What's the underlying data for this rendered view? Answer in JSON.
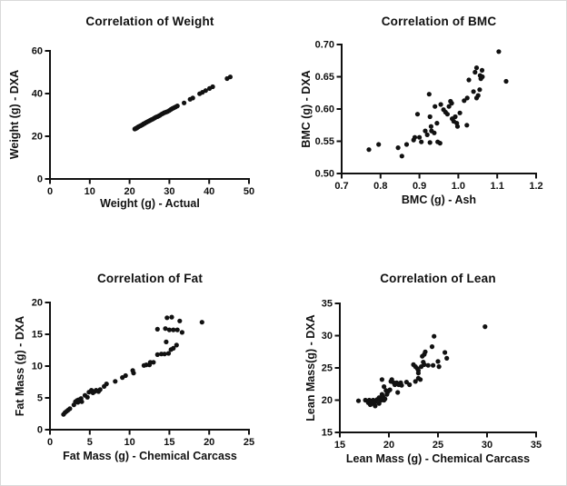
{
  "figure": {
    "background": "#ffffff",
    "axis_color": "#111111",
    "marker_color": "#111111",
    "marker_radius": 2.6
  },
  "chart_data": [
    {
      "id": "weight",
      "type": "scatter",
      "title": "Correlation of Weight",
      "xlabel": "Weight (g) - Actual",
      "ylabel": "Weight (g) - DXA",
      "xlim": [
        0,
        50
      ],
      "ylim": [
        0,
        60
      ],
      "grid": false,
      "xtick_values": [
        0,
        10,
        20,
        30,
        40,
        50
      ],
      "xtick_labels": [
        "0",
        "10",
        "20",
        "30",
        "40",
        "50"
      ],
      "ytick_values": [
        0,
        20,
        40,
        60
      ],
      "ytick_labels": [
        "0",
        "20",
        "40",
        "60"
      ],
      "points": [
        [
          21.3,
          23.4
        ],
        [
          21.5,
          23.6
        ],
        [
          21.7,
          23.8
        ],
        [
          21.9,
          24.0
        ],
        [
          22.1,
          24.3
        ],
        [
          22.3,
          24.5
        ],
        [
          22.6,
          24.8
        ],
        [
          22.8,
          25.0
        ],
        [
          23.0,
          25.2
        ],
        [
          23.3,
          25.5
        ],
        [
          23.5,
          25.8
        ],
        [
          23.8,
          26.0
        ],
        [
          24.0,
          26.3
        ],
        [
          24.3,
          26.6
        ],
        [
          24.6,
          26.9
        ],
        [
          24.9,
          27.2
        ],
        [
          25.2,
          27.5
        ],
        [
          25.5,
          27.8
        ],
        [
          25.8,
          28.0
        ],
        [
          26.1,
          28.4
        ],
        [
          26.4,
          28.7
        ],
        [
          26.7,
          29.0
        ],
        [
          27.0,
          29.2
        ],
        [
          27.3,
          29.5
        ],
        [
          27.6,
          29.8
        ],
        [
          28.0,
          30.3
        ],
        [
          28.3,
          30.6
        ],
        [
          28.7,
          31.0
        ],
        [
          29.0,
          31.2
        ],
        [
          29.3,
          31.4
        ],
        [
          29.6,
          31.6
        ],
        [
          30.0,
          32.1
        ],
        [
          30.4,
          32.6
        ],
        [
          30.8,
          33.0
        ],
        [
          31.2,
          33.4
        ],
        [
          31.6,
          33.8
        ],
        [
          32.0,
          34.2
        ],
        [
          33.7,
          35.6
        ],
        [
          35.2,
          37.3
        ],
        [
          35.9,
          37.9
        ],
        [
          37.6,
          39.9
        ],
        [
          38.3,
          40.6
        ],
        [
          39.1,
          41.4
        ],
        [
          40.1,
          42.4
        ],
        [
          40.9,
          43.2
        ],
        [
          44.5,
          47.0
        ],
        [
          45.3,
          47.8
        ]
      ]
    },
    {
      "id": "bmc",
      "type": "scatter",
      "title": "Correlation of BMC",
      "xlabel": "BMC (g) - Ash",
      "ylabel": "BMC (g) - DXA",
      "xlim": [
        0.7,
        1.2
      ],
      "ylim": [
        0.5,
        0.7
      ],
      "grid": false,
      "xtick_values": [
        0.7,
        0.8,
        0.9,
        1.0,
        1.1,
        1.2
      ],
      "xtick_labels": [
        "0.7",
        "0.8",
        "0.9",
        "1.0",
        "1.1",
        "1.2"
      ],
      "ytick_values": [
        0.5,
        0.55,
        0.6,
        0.65,
        0.7
      ],
      "ytick_labels": [
        "0.50",
        "0.55",
        "0.60",
        "0.65",
        "0.70"
      ],
      "points": [
        [
          0.77,
          0.537
        ],
        [
          0.795,
          0.545
        ],
        [
          0.845,
          0.54
        ],
        [
          0.855,
          0.527
        ],
        [
          0.867,
          0.545
        ],
        [
          0.885,
          0.552
        ],
        [
          0.888,
          0.556
        ],
        [
          0.895,
          0.592
        ],
        [
          0.9,
          0.556
        ],
        [
          0.905,
          0.549
        ],
        [
          0.915,
          0.566
        ],
        [
          0.92,
          0.56
        ],
        [
          0.925,
          0.623
        ],
        [
          0.927,
          0.588
        ],
        [
          0.93,
          0.573
        ],
        [
          0.931,
          0.566
        ],
        [
          0.927,
          0.548
        ],
        [
          0.938,
          0.563
        ],
        [
          0.94,
          0.604
        ],
        [
          0.945,
          0.578
        ],
        [
          0.947,
          0.549
        ],
        [
          0.953,
          0.547
        ],
        [
          0.955,
          0.607
        ],
        [
          0.962,
          0.599
        ],
        [
          0.967,
          0.595
        ],
        [
          0.972,
          0.592
        ],
        [
          0.976,
          0.604
        ],
        [
          0.98,
          0.612
        ],
        [
          0.983,
          0.609
        ],
        [
          0.984,
          0.585
        ],
        [
          0.988,
          0.581
        ],
        [
          0.992,
          0.588
        ],
        [
          0.996,
          0.578
        ],
        [
          0.998,
          0.573
        ],
        [
          1.004,
          0.594
        ],
        [
          1.015,
          0.613
        ],
        [
          1.022,
          0.575
        ],
        [
          1.023,
          0.617
        ],
        [
          1.027,
          0.645
        ],
        [
          1.039,
          0.627
        ],
        [
          1.043,
          0.657
        ],
        [
          1.047,
          0.664
        ],
        [
          1.047,
          0.617
        ],
        [
          1.051,
          0.621
        ],
        [
          1.055,
          0.63
        ],
        [
          1.056,
          0.652
        ],
        [
          1.058,
          0.647
        ],
        [
          1.061,
          0.66
        ],
        [
          1.062,
          0.65
        ],
        [
          1.104,
          0.689
        ],
        [
          1.123,
          0.643
        ]
      ]
    },
    {
      "id": "fat",
      "type": "scatter",
      "title": "Correlation of Fat",
      "xlabel": "Fat Mass (g) - Chemical Carcass",
      "ylabel": "Fat Mass (g) - DXA",
      "xlim": [
        0,
        25
      ],
      "ylim": [
        0,
        20
      ],
      "grid": false,
      "xtick_values": [
        0,
        5,
        10,
        15,
        20,
        25
      ],
      "xtick_labels": [
        "0",
        "5",
        "10",
        "15",
        "20",
        "25"
      ],
      "ytick_values": [
        0,
        5,
        10,
        15,
        20
      ],
      "ytick_labels": [
        "0",
        "5",
        "10",
        "15",
        "20"
      ],
      "points": [
        [
          1.7,
          2.4
        ],
        [
          1.9,
          2.7
        ],
        [
          2.1,
          2.9
        ],
        [
          2.3,
          3.1
        ],
        [
          2.5,
          3.3
        ],
        [
          3.0,
          3.9
        ],
        [
          3.2,
          4.4
        ],
        [
          3.4,
          4.6
        ],
        [
          3.5,
          4.3
        ],
        [
          3.6,
          4.7
        ],
        [
          3.7,
          4.5
        ],
        [
          3.9,
          4.9
        ],
        [
          4.0,
          4.4
        ],
        [
          4.4,
          5.4
        ],
        [
          4.7,
          5.1
        ],
        [
          4.9,
          5.9
        ],
        [
          5.2,
          6.2
        ],
        [
          5.4,
          5.8
        ],
        [
          5.6,
          6.0
        ],
        [
          5.8,
          6.2
        ],
        [
          6.1,
          6.0
        ],
        [
          6.3,
          6.3
        ],
        [
          6.8,
          6.8
        ],
        [
          7.1,
          7.2
        ],
        [
          8.2,
          7.6
        ],
        [
          9.1,
          8.2
        ],
        [
          9.5,
          8.5
        ],
        [
          10.4,
          9.3
        ],
        [
          10.5,
          8.9
        ],
        [
          11.8,
          10.1
        ],
        [
          12.1,
          10.2
        ],
        [
          12.5,
          10.2
        ],
        [
          12.6,
          10.6
        ],
        [
          13.0,
          10.6
        ],
        [
          13.5,
          11.8
        ],
        [
          14.0,
          11.9
        ],
        [
          14.4,
          11.9
        ],
        [
          14.9,
          12.0
        ],
        [
          15.2,
          12.6
        ],
        [
          15.5,
          12.8
        ],
        [
          15.9,
          13.3
        ],
        [
          14.6,
          13.8
        ],
        [
          13.5,
          15.8
        ],
        [
          14.5,
          15.9
        ],
        [
          15.0,
          15.7
        ],
        [
          15.5,
          15.7
        ],
        [
          16.0,
          15.7
        ],
        [
          16.6,
          15.3
        ],
        [
          14.7,
          17.6
        ],
        [
          15.3,
          17.7
        ],
        [
          16.3,
          17.1
        ],
        [
          19.1,
          16.9
        ]
      ]
    },
    {
      "id": "lean",
      "type": "scatter",
      "title": "Correlation of Lean",
      "xlabel": "Lean Mass (g) - Chemical Carcass",
      "ylabel": "Lean Mass(g) - DXA",
      "xlim": [
        15,
        35
      ],
      "ylim": [
        15,
        35
      ],
      "grid": false,
      "xtick_values": [
        15,
        20,
        25,
        30,
        35
      ],
      "xtick_labels": [
        "15",
        "20",
        "25",
        "30",
        "35"
      ],
      "ytick_values": [
        15,
        20,
        25,
        30,
        35
      ],
      "ytick_labels": [
        "15",
        "20",
        "25",
        "30",
        "35"
      ],
      "points": [
        [
          16.9,
          19.9
        ],
        [
          17.6,
          20.0
        ],
        [
          17.9,
          19.6
        ],
        [
          18.0,
          20.0
        ],
        [
          18.1,
          19.3
        ],
        [
          18.3,
          19.5
        ],
        [
          18.4,
          20.0
        ],
        [
          18.6,
          19.1
        ],
        [
          18.6,
          19.7
        ],
        [
          18.8,
          20.1
        ],
        [
          19.0,
          19.5
        ],
        [
          19.0,
          20.4
        ],
        [
          19.2,
          20.0
        ],
        [
          19.3,
          20.9
        ],
        [
          19.3,
          23.2
        ],
        [
          19.4,
          20.5
        ],
        [
          19.5,
          20.0
        ],
        [
          19.5,
          22.1
        ],
        [
          19.6,
          20.2
        ],
        [
          19.7,
          21.5
        ],
        [
          19.8,
          20.9
        ],
        [
          19.9,
          21.3
        ],
        [
          20.1,
          21.6
        ],
        [
          20.2,
          22.9
        ],
        [
          20.3,
          23.2
        ],
        [
          20.5,
          22.7
        ],
        [
          20.6,
          22.4
        ],
        [
          20.8,
          22.7
        ],
        [
          20.9,
          21.2
        ],
        [
          21.0,
          22.4
        ],
        [
          21.2,
          22.7
        ],
        [
          21.3,
          22.3
        ],
        [
          21.8,
          22.8
        ],
        [
          22.1,
          22.4
        ],
        [
          22.7,
          22.9
        ],
        [
          23.0,
          23.4
        ],
        [
          23.2,
          23.2
        ],
        [
          22.5,
          25.5
        ],
        [
          22.7,
          25.2
        ],
        [
          22.9,
          24.9
        ],
        [
          23.0,
          24.6
        ],
        [
          23.0,
          24.2
        ],
        [
          23.3,
          25.2
        ],
        [
          23.5,
          25.9
        ],
        [
          23.6,
          25.5
        ],
        [
          23.4,
          26.8
        ],
        [
          23.6,
          27.1
        ],
        [
          23.7,
          27.5
        ],
        [
          24.0,
          25.4
        ],
        [
          24.4,
          28.3
        ],
        [
          24.5,
          25.4
        ],
        [
          24.6,
          29.9
        ],
        [
          25.0,
          26.0
        ],
        [
          25.1,
          25.2
        ],
        [
          25.7,
          27.4
        ],
        [
          25.9,
          26.5
        ],
        [
          29.8,
          31.4
        ]
      ]
    }
  ]
}
